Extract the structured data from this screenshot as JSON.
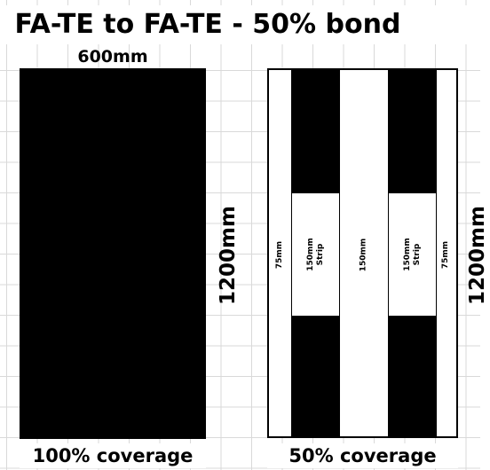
{
  "title": "FA-TE to FA-TE - 50% bond",
  "solid_panel": {
    "width_label": "600mm",
    "height_label": "1200mm",
    "coverage_label": "100% coverage",
    "fill_color": "#000000"
  },
  "strip_panel": {
    "height_label": "1200mm",
    "coverage_label": "50% coverage",
    "edge_left_label": "75mm",
    "strip_left_label_line1": "150mm",
    "strip_left_label_line2": "Strip",
    "center_gap_label": "150mm",
    "strip_right_label_line1": "150mm",
    "strip_right_label_line2": "Strip",
    "edge_right_label": "75mm",
    "bond_color": "#000000",
    "gap_color": "#ffffff"
  },
  "grid_color": "#d9d9d9"
}
